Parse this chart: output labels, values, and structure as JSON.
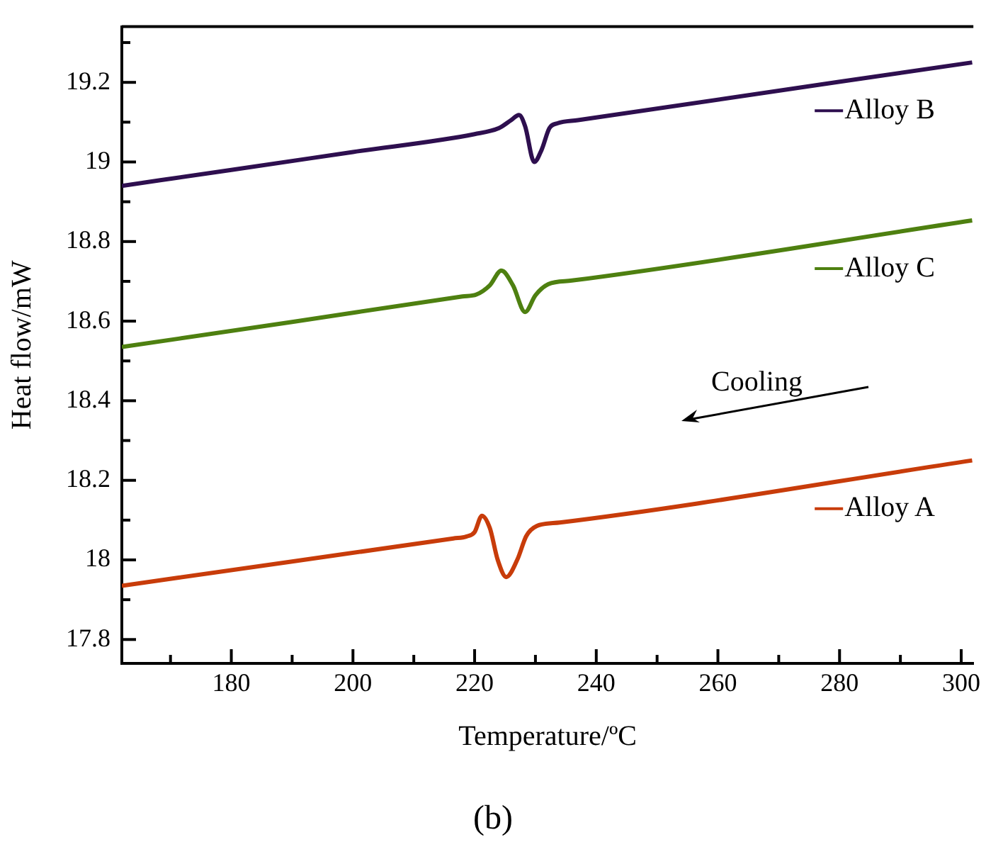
{
  "chart_data": {
    "type": "line",
    "xlabel": "Temperature/ºC",
    "ylabel": "Heat flow/mW",
    "xlim": [
      162,
      302
    ],
    "xticks": [
      {
        "value": 170,
        "label": null
      },
      180,
      {
        "value": 190,
        "label": null
      },
      200,
      {
        "value": 210,
        "label": null
      },
      220,
      {
        "value": 230,
        "label": null
      },
      240,
      {
        "value": 250,
        "label": null
      },
      260,
      {
        "value": 270,
        "label": null
      },
      280,
      {
        "value": 290,
        "label": null
      },
      300
    ],
    "ylim": [
      17.74,
      19.34
    ],
    "yticks": [
      17.8,
      {
        "value": 17.9,
        "label": null
      },
      18,
      {
        "value": 18.1,
        "label": null
      },
      18.2,
      {
        "value": 18.3,
        "label": null
      },
      18.4,
      {
        "value": 18.5,
        "label": null
      },
      18.6,
      {
        "value": 18.7,
        "label": null
      },
      18.8,
      {
        "value": 18.9,
        "label": null
      },
      19,
      {
        "value": 19.1,
        "label": null
      },
      19.2,
      {
        "value": 19.3,
        "label": null
      }
    ],
    "marker": "none",
    "legend": "right",
    "line_style": "solid",
    "series": [
      {
        "name": "Alloy B",
        "color": "#2e0f4f",
        "x": [
          162,
          180,
          200,
          220,
          224,
          226,
          227.3,
          228.3,
          229.8,
          231,
          232.3,
          233.6,
          237,
          301.8
        ],
        "values": [
          18.94,
          18.98,
          19.025,
          19.07,
          19.085,
          19.105,
          19.118,
          19.09,
          19.0,
          19.03,
          19.085,
          19.097,
          19.105,
          19.25
        ]
      },
      {
        "name": "Alloy C",
        "color": "#4e8010",
        "x": [
          162,
          190,
          218,
          220.3,
          222.5,
          224.4,
          226.3,
          228.3,
          230,
          232.1,
          236,
          301.8
        ],
        "values": [
          18.535,
          18.598,
          18.662,
          18.667,
          18.69,
          18.727,
          18.69,
          18.623,
          18.665,
          18.693,
          18.702,
          18.853
        ]
      },
      {
        "name": "Alloy A",
        "color": "#c83c0a",
        "x": [
          162,
          190,
          216.5,
          218.7,
          220,
          221.2,
          222.5,
          223.8,
          225.2,
          227,
          228.5,
          230.2,
          234,
          301.8
        ],
        "values": [
          17.935,
          17.996,
          18.054,
          18.059,
          18.07,
          18.111,
          18.08,
          18.0,
          17.957,
          18.0,
          18.06,
          18.085,
          18.094,
          18.25
        ]
      }
    ],
    "annotations": [
      "Cooling",
      "(b)"
    ]
  }
}
